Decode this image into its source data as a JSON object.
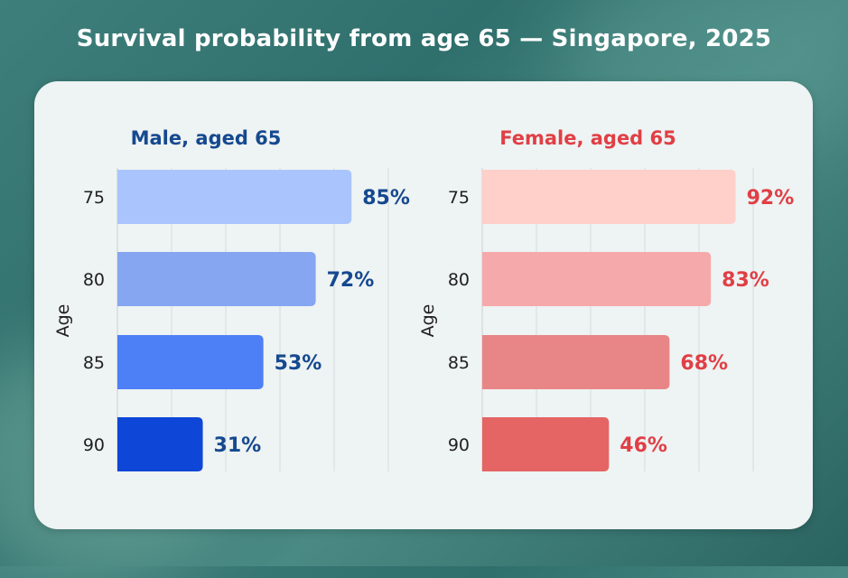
{
  "title": "Survival probability from age 65 — Singapore, 2025",
  "chart_data": [
    {
      "type": "bar",
      "orientation": "horizontal",
      "title": "Male, aged 65",
      "ylabel": "Age",
      "xlabel": "",
      "categories": [
        "75",
        "80",
        "85",
        "90"
      ],
      "values": [
        85,
        72,
        53,
        31
      ],
      "value_labels": [
        "85%",
        "72%",
        "53%",
        "31%"
      ],
      "xlim": [
        0,
        100
      ],
      "grid": true,
      "title_color": "#15498f",
      "label_color": "#15498f",
      "bar_colors": [
        "#aac5fd",
        "#86a6f1",
        "#4d7ff7",
        "#0e46d8"
      ]
    },
    {
      "type": "bar",
      "orientation": "horizontal",
      "title": "Female, aged 65",
      "ylabel": "Age",
      "xlabel": "",
      "categories": [
        "75",
        "80",
        "85",
        "90"
      ],
      "values": [
        92,
        83,
        68,
        46
      ],
      "value_labels": [
        "92%",
        "83%",
        "68%",
        "46%"
      ],
      "xlim": [
        0,
        100
      ],
      "grid": true,
      "title_color": "#e03f45",
      "label_color": "#e03f45",
      "bar_colors": [
        "#ffcfc9",
        "#f6a9ab",
        "#e88586",
        "#e56464"
      ]
    }
  ]
}
